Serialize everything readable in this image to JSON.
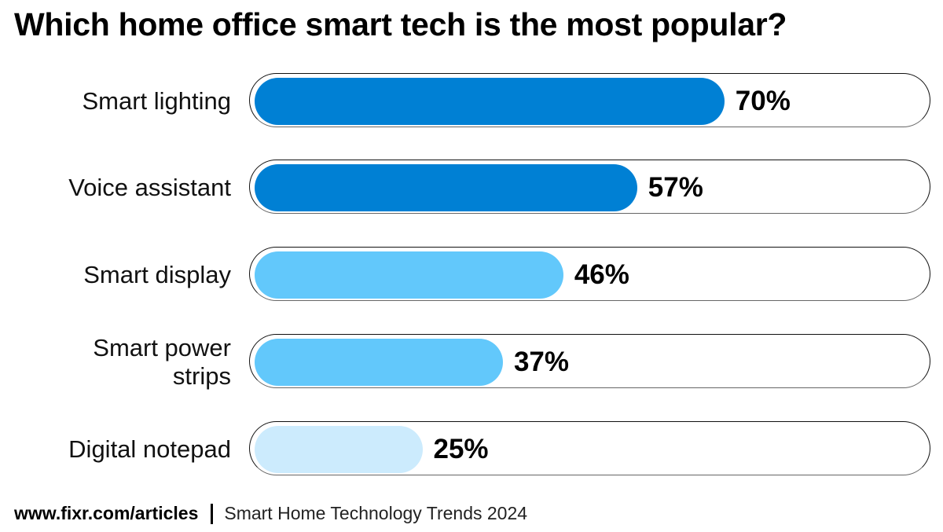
{
  "chart_data": {
    "type": "bar",
    "orientation": "horizontal",
    "title": "Which home office smart tech is the most popular?",
    "categories": [
      "Smart lighting",
      "Voice assistant",
      "Smart display",
      "Smart power strips",
      "Digital notepad"
    ],
    "values": [
      70,
      57,
      46,
      37,
      25
    ],
    "labels": [
      "70%",
      "57%",
      "46%",
      "37%",
      "25%"
    ],
    "xlim": [
      0,
      100
    ],
    "unit": "%",
    "colors": [
      "#0080D4",
      "#0080D4",
      "#62C8FB",
      "#62C8FB",
      "#CCEBFD"
    ],
    "track_color": "#FFFFFF",
    "grid": false
  },
  "footer": {
    "source": "www.fixr.com/articles",
    "note": "Smart Home Technology Trends 2024"
  }
}
